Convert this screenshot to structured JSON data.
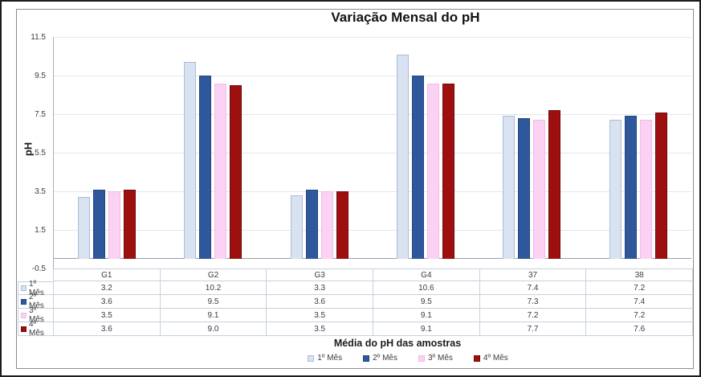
{
  "chart_data": {
    "type": "bar",
    "title": "Variação Mensal do pH",
    "xlabel": "Média do pH das amostras",
    "ylabel": "pH",
    "ylim": [
      -0.5,
      11.5
    ],
    "y_ticks": [
      "11.5",
      "9.5",
      "7.5",
      "5.5",
      "3.5",
      "1.5",
      "-0.5"
    ],
    "grid": true,
    "legend_position": "bottom",
    "show_data_table": true,
    "categories": [
      "G1",
      "G2",
      "G3",
      "G4",
      "37",
      "38"
    ],
    "series": [
      {
        "name": "1º Mês",
        "color": "#d9e2f1",
        "border": "#a9bdd9",
        "values": [
          3.2,
          10.2,
          3.3,
          10.6,
          7.4,
          7.2
        ]
      },
      {
        "name": "2º Mês",
        "color": "#2e579c",
        "border": "#24477f",
        "values": [
          3.6,
          9.5,
          3.6,
          9.5,
          7.3,
          7.4
        ]
      },
      {
        "name": "3º Mês",
        "color": "#fbd2f3",
        "border": "#f0bbe5",
        "values": [
          3.5,
          9.1,
          3.5,
          9.1,
          7.2,
          7.2
        ]
      },
      {
        "name": "4º Mês",
        "color": "#9e0f10",
        "border": "#6f0a0b",
        "values": [
          3.6,
          9.0,
          3.5,
          9.1,
          7.7,
          7.6
        ]
      }
    ]
  }
}
